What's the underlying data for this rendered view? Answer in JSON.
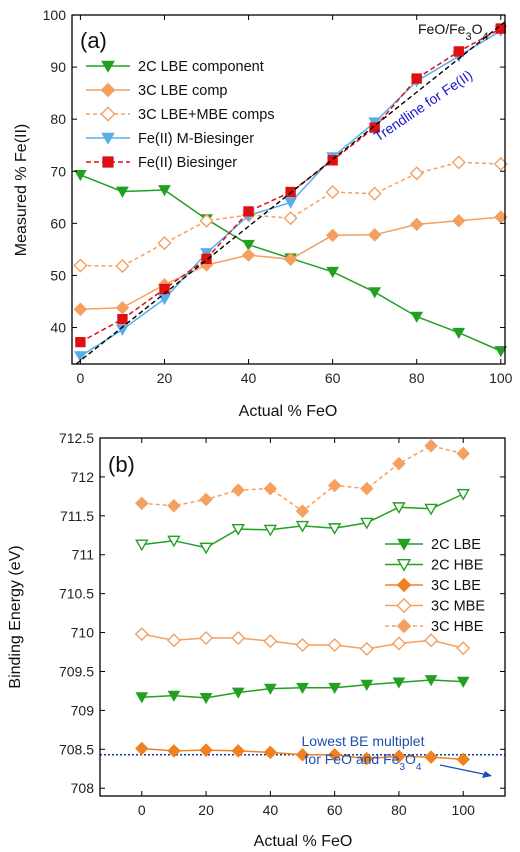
{
  "chart_data": [
    {
      "type": "line",
      "panel_label": "(a)",
      "title": "FeO/Fe3O4",
      "title_main": "FeO/Fe",
      "title_sub": "3",
      "title_tail": "O",
      "title_sub2": "4",
      "xlabel": "Actual % FeO",
      "ylabel": "Measured % Fe(II)",
      "xlim": [
        -2,
        101
      ],
      "ylim": [
        33,
        100
      ],
      "xticks": [
        0,
        20,
        40,
        60,
        80,
        100
      ],
      "yticks": [
        40,
        50,
        60,
        70,
        80,
        90,
        100
      ],
      "grid": false,
      "legend_position": "top-left",
      "series": [
        {
          "name": "2C LBE component",
          "color": "#22a022",
          "marker": "triangle-down",
          "filled": true,
          "dash": "none",
          "x": [
            0,
            10,
            20,
            30,
            40,
            50,
            60,
            70,
            80,
            90,
            100
          ],
          "y": [
            69.3,
            66.1,
            66.4,
            60.8,
            55.9,
            53.3,
            50.7,
            46.8,
            42.1,
            39.0,
            35.5
          ]
        },
        {
          "name": "3C LBE comp",
          "color": "#f4a060",
          "marker": "diamond",
          "filled": true,
          "dash": "none",
          "x": [
            0,
            10,
            20,
            30,
            40,
            50,
            60,
            70,
            80,
            90,
            100
          ],
          "y": [
            43.5,
            43.8,
            48.2,
            52.0,
            53.9,
            53.1,
            57.7,
            57.8,
            59.8,
            60.5,
            61.2
          ]
        },
        {
          "name": "3C LBE+MBE comps",
          "color": "#f4a060",
          "marker": "diamond",
          "filled": false,
          "dash": "4,3",
          "x": [
            0,
            10,
            20,
            30,
            40,
            50,
            60,
            70,
            80,
            90,
            100
          ],
          "y": [
            51.9,
            51.8,
            56.2,
            60.5,
            61.6,
            61.0,
            66.0,
            65.7,
            69.6,
            71.7,
            71.4
          ]
        },
        {
          "name": "Fe(II) M-Biesinger",
          "color": "#5aaee8",
          "marker": "triangle-down",
          "filled": true,
          "dash": "none",
          "x": [
            0,
            10,
            20,
            30,
            40,
            50,
            60,
            70,
            80,
            90,
            100
          ],
          "y": [
            34.5,
            39.6,
            45.5,
            54.3,
            61.5,
            64.0,
            72.7,
            79.4,
            87.3,
            92.1,
            97.0
          ]
        },
        {
          "name": "Fe(II) Biesinger",
          "color": "#dd1111",
          "marker": "square",
          "filled": true,
          "dash": "5,3",
          "x": [
            0,
            10,
            20,
            30,
            40,
            50,
            60,
            70,
            80,
            90,
            100
          ],
          "y": [
            37.2,
            41.6,
            47.4,
            53.2,
            62.3,
            66.0,
            72.1,
            78.4,
            87.8,
            93.0,
            97.4
          ]
        }
      ],
      "trendline": {
        "label": "Trendline for Fe(II)",
        "color": "#1a1acc",
        "x": [
          -1,
          103
        ],
        "y": [
          33,
          100
        ]
      }
    },
    {
      "type": "line",
      "panel_label": "(b)",
      "xlabel": "Actual % FeO",
      "ylabel": "Binding Energy (eV)",
      "xlim": [
        -13,
        113
      ],
      "ylim": [
        707.9,
        712.5
      ],
      "xticks": [
        0,
        20,
        40,
        60,
        80,
        100
      ],
      "xtick_labels": [
        "0",
        "20",
        "40",
        "60",
        "80",
        "100"
      ],
      "yticks": [
        708,
        708.5,
        709,
        709.5,
        710,
        710.5,
        711,
        711.5,
        712,
        712.5
      ],
      "ytick_labels": [
        "708",
        "708.5",
        "709",
        "709.5",
        "710",
        "710.5",
        "711",
        "711.5",
        "712",
        "712.5"
      ],
      "grid": false,
      "legend_position": "center-right",
      "series": [
        {
          "name": "2C LBE",
          "color": "#22a022",
          "marker": "triangle-down",
          "filled": true,
          "dash": "none",
          "x": [
            0,
            10,
            20,
            30,
            40,
            50,
            60,
            70,
            80,
            90,
            100
          ],
          "y": [
            709.17,
            709.19,
            709.16,
            709.23,
            709.28,
            709.29,
            709.29,
            709.33,
            709.36,
            709.39,
            709.37
          ]
        },
        {
          "name": "2C HBE",
          "color": "#22a022",
          "marker": "triangle-down",
          "filled": false,
          "dash": "none",
          "x": [
            0,
            10,
            20,
            30,
            40,
            50,
            60,
            70,
            80,
            90,
            100
          ],
          "y": [
            711.13,
            711.18,
            711.09,
            711.33,
            711.32,
            711.37,
            711.34,
            711.41,
            711.61,
            711.59,
            711.78
          ]
        },
        {
          "name": "3C LBE",
          "color": "#f08020",
          "marker": "diamond",
          "filled": true,
          "dash": "none",
          "x": [
            0,
            10,
            20,
            30,
            40,
            50,
            60,
            70,
            80,
            90,
            100
          ],
          "y": [
            708.51,
            708.48,
            708.49,
            708.48,
            708.46,
            708.43,
            708.43,
            708.38,
            708.41,
            708.4,
            708.37
          ]
        },
        {
          "name": "3C MBE",
          "color": "#f4a060",
          "marker": "diamond",
          "filled": false,
          "dash": "none",
          "x": [
            0,
            10,
            20,
            30,
            40,
            50,
            60,
            70,
            80,
            90,
            100
          ],
          "y": [
            709.98,
            709.9,
            709.93,
            709.93,
            709.89,
            709.84,
            709.84,
            709.79,
            709.86,
            709.9,
            709.8
          ]
        },
        {
          "name": "3C HBE",
          "color": "#f4a060",
          "marker": "diamond",
          "filled": true,
          "dash": "4,3",
          "x": [
            0,
            10,
            20,
            30,
            40,
            50,
            60,
            70,
            80,
            90,
            100
          ],
          "y": [
            711.66,
            711.63,
            711.71,
            711.83,
            711.85,
            711.56,
            711.89,
            711.85,
            712.17,
            712.4,
            712.3
          ]
        }
      ],
      "reference_line": {
        "y": 708.43,
        "color": "#1a3ca0",
        "label_line1": "Lowest BE multiplet",
        "label_line2_a": "for FeO and Fe",
        "label_line2_sub1": "3",
        "label_line2_b": "O",
        "label_line2_sub2": "4",
        "label_color": "#1a4fb0"
      }
    }
  ]
}
